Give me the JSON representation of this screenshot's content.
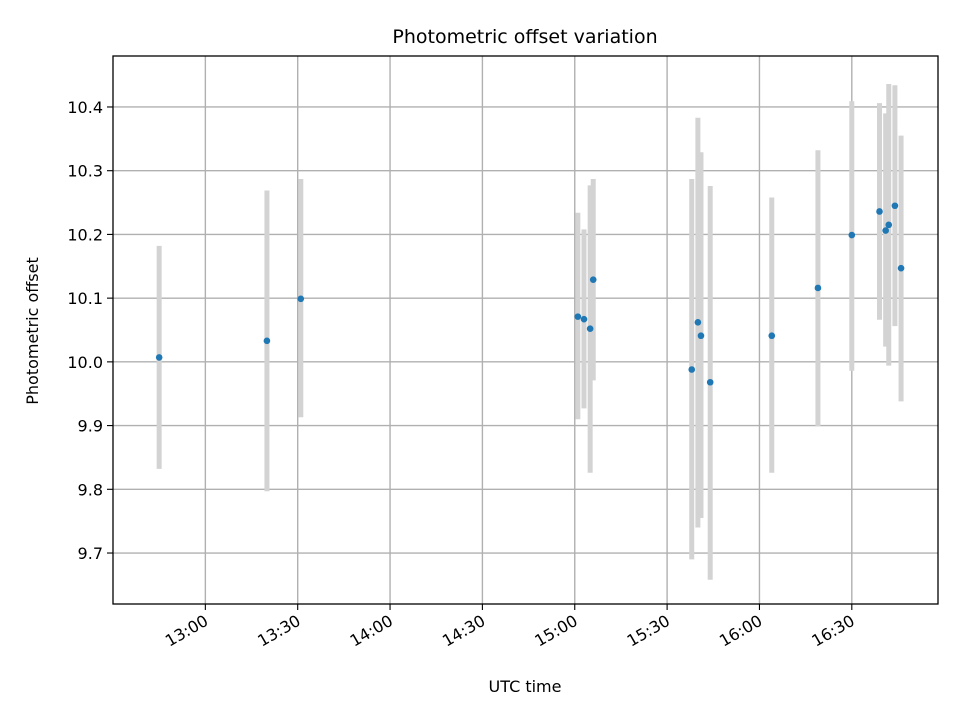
{
  "chart_data": {
    "type": "scatter",
    "title": "Photometric offset variation",
    "xlabel": "UTC time",
    "ylabel": "Photometric offset",
    "xlim": [
      "12:30",
      "16:58"
    ],
    "ylim": [
      9.62,
      10.48
    ],
    "x_ticks": [
      "13:00",
      "13:30",
      "14:00",
      "14:30",
      "15:00",
      "15:30",
      "16:00",
      "16:30"
    ],
    "y_ticks": [
      "9.7",
      "9.8",
      "9.9",
      "10.0",
      "10.1",
      "10.2",
      "10.3",
      "10.4"
    ],
    "grid": true,
    "errorbars": true,
    "point_color": "#1f77b4",
    "errorbar_color": "#d3d3d3",
    "points": [
      {
        "t": "12:45",
        "y": 10.007,
        "lo": 9.832,
        "hi": 10.182
      },
      {
        "t": "13:20",
        "y": 10.033,
        "lo": 9.797,
        "hi": 10.269
      },
      {
        "t": "13:31",
        "y": 10.099,
        "lo": 9.913,
        "hi": 10.287
      },
      {
        "t": "15:01",
        "y": 10.071,
        "lo": 9.91,
        "hi": 10.234
      },
      {
        "t": "15:03",
        "y": 10.067,
        "lo": 9.927,
        "hi": 10.208
      },
      {
        "t": "15:05",
        "y": 10.052,
        "lo": 9.826,
        "hi": 10.277
      },
      {
        "t": "15:06",
        "y": 10.129,
        "lo": 9.971,
        "hi": 10.287
      },
      {
        "t": "15:38",
        "y": 9.988,
        "lo": 9.69,
        "hi": 10.287
      },
      {
        "t": "15:40",
        "y": 10.062,
        "lo": 9.74,
        "hi": 10.383
      },
      {
        "t": "15:41",
        "y": 10.041,
        "lo": 9.755,
        "hi": 10.329
      },
      {
        "t": "15:44",
        "y": 9.968,
        "lo": 9.658,
        "hi": 10.276
      },
      {
        "t": "16:04",
        "y": 10.041,
        "lo": 9.826,
        "hi": 10.258
      },
      {
        "t": "16:19",
        "y": 10.116,
        "lo": 9.899,
        "hi": 10.332
      },
      {
        "t": "16:30",
        "y": 10.199,
        "lo": 9.986,
        "hi": 10.409
      },
      {
        "t": "16:39",
        "y": 10.236,
        "lo": 10.066,
        "hi": 10.406
      },
      {
        "t": "16:41",
        "y": 10.206,
        "lo": 10.024,
        "hi": 10.39
      },
      {
        "t": "16:42",
        "y": 10.215,
        "lo": 9.994,
        "hi": 10.436
      },
      {
        "t": "16:44",
        "y": 10.245,
        "lo": 10.056,
        "hi": 10.434
      },
      {
        "t": "16:46",
        "y": 10.147,
        "lo": 9.938,
        "hi": 10.355
      }
    ]
  }
}
